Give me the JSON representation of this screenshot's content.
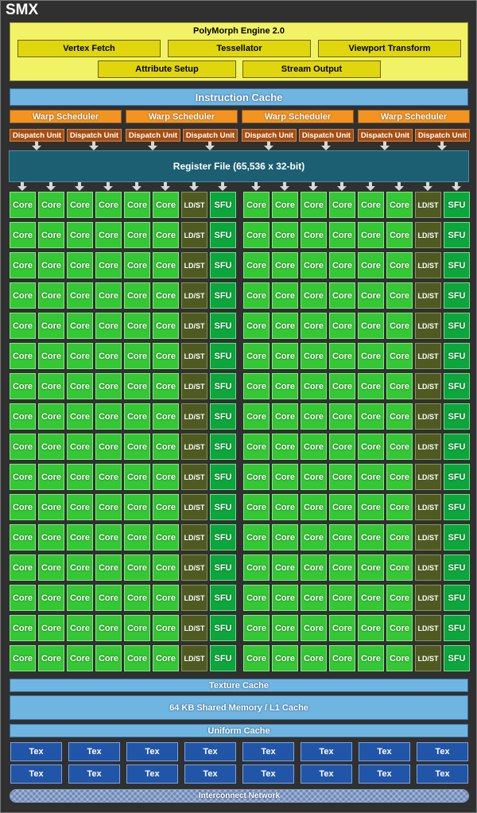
{
  "smx_label": "SMX",
  "polymorph": {
    "title": "PolyMorph Engine 2.0",
    "units": [
      "Vertex Fetch",
      "Tessellator",
      "Viewport Transform",
      "Attribute Setup",
      "Stream Output"
    ]
  },
  "instruction_cache": "Instruction Cache",
  "warp_scheduler": "Warp Scheduler",
  "dispatch_unit": "Dispatch Unit",
  "register_file": "Register File (65,536 x 32-bit)",
  "core_label": "Core",
  "ldst_label": "LD/ST",
  "sfu_label": "SFU",
  "texture_cache": "Texture Cache",
  "shared_memory": "64 KB Shared Memory / L1 Cache",
  "uniform_cache": "Uniform Cache",
  "tex_label": "Tex",
  "interconnect": "Interconnect Network"
}
